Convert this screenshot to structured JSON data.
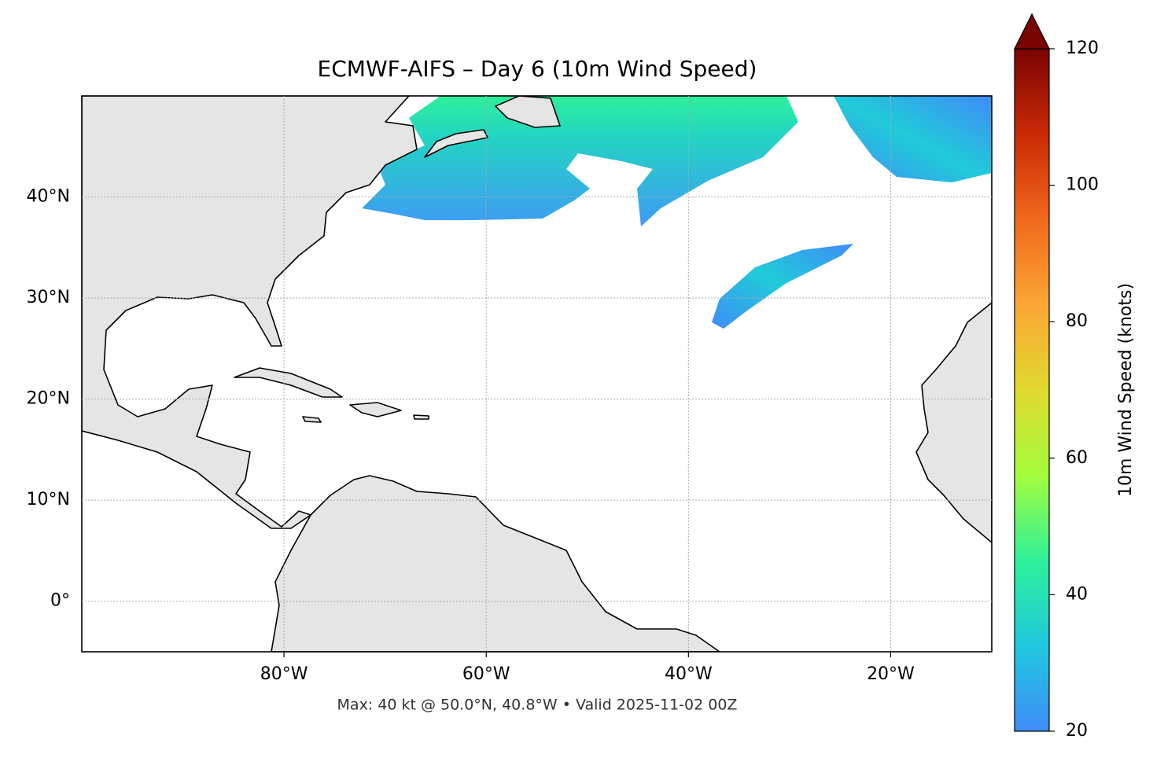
{
  "chart_data": {
    "type": "map",
    "title": "ECMWF-AIFS – Day 6 (10m Wind Speed)",
    "footer": "Max: 40 kt @ 50.0°N, 40.8°W • Valid 2025-11-02 00Z",
    "xlim": [
      -100,
      -10
    ],
    "ylim": [
      -5,
      50
    ],
    "xticks": [
      {
        "value": -80,
        "label": "80°W"
      },
      {
        "value": -60,
        "label": "60°W"
      },
      {
        "value": -40,
        "label": "40°W"
      },
      {
        "value": -20,
        "label": "20°W"
      }
    ],
    "yticks": [
      {
        "value": 0,
        "label": "0°"
      },
      {
        "value": 10,
        "label": "10°N"
      },
      {
        "value": 20,
        "label": "20°N"
      },
      {
        "value": 30,
        "label": "30°N"
      },
      {
        "value": 40,
        "label": "40°N"
      }
    ],
    "grid": true,
    "colorbar": {
      "label": "10m Wind Speed (knots)",
      "lim": [
        20,
        120
      ],
      "ticks": [
        20,
        40,
        60,
        80,
        100,
        120
      ],
      "colors": [
        "#3f8cf8",
        "#1fc8de",
        "#2ef19a",
        "#a4fc3c",
        "#e0d92e",
        "#fba635",
        "#f0691c",
        "#c92a05",
        "#7a0403"
      ]
    }
  }
}
